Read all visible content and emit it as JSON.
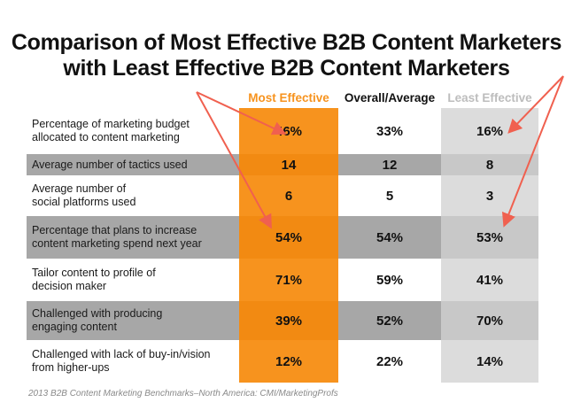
{
  "chart_data": {
    "type": "table",
    "title_line1": "Comparison of Most Effective B2B Content Marketers",
    "title_line2": "with Least Effective B2B Content Marketers",
    "columns": [
      "Most Effective",
      "Overall/Average",
      "Least Effective"
    ],
    "rows": [
      {
        "label_line1": "Percentage of marketing budget",
        "label_line2": "allocated to content marketing",
        "most": "46%",
        "avg": "33%",
        "least": "16%"
      },
      {
        "label_line1": "Average number of tactics used",
        "label_line2": "",
        "most": "14",
        "avg": "12",
        "least": "8"
      },
      {
        "label_line1": "Average number of",
        "label_line2": "social platforms used",
        "most": "6",
        "avg": "5",
        "least": "3"
      },
      {
        "label_line1": "Percentage that plans to increase",
        "label_line2": "content marketing spend next year",
        "most": "54%",
        "avg": "54%",
        "least": "53%"
      },
      {
        "label_line1": "Tailor content to profile of",
        "label_line2": "decision maker",
        "most": "71%",
        "avg": "59%",
        "least": "41%"
      },
      {
        "label_line1": "Challenged with producing",
        "label_line2": "engaging content",
        "most": "39%",
        "avg": "52%",
        "least": "70%"
      },
      {
        "label_line1": "Challenged with lack of buy-in/vision",
        "label_line2": "from higher-ups",
        "most": "12%",
        "avg": "22%",
        "least": "14%"
      }
    ],
    "colors": {
      "most": "#f7931e",
      "least_header": "#bdbdbd",
      "row_shade": "#a7a7a7",
      "arrow": "#f0604f"
    }
  },
  "source": "2013 B2B Content Marketing Benchmarks–North America: CMI/MarketingProfs"
}
